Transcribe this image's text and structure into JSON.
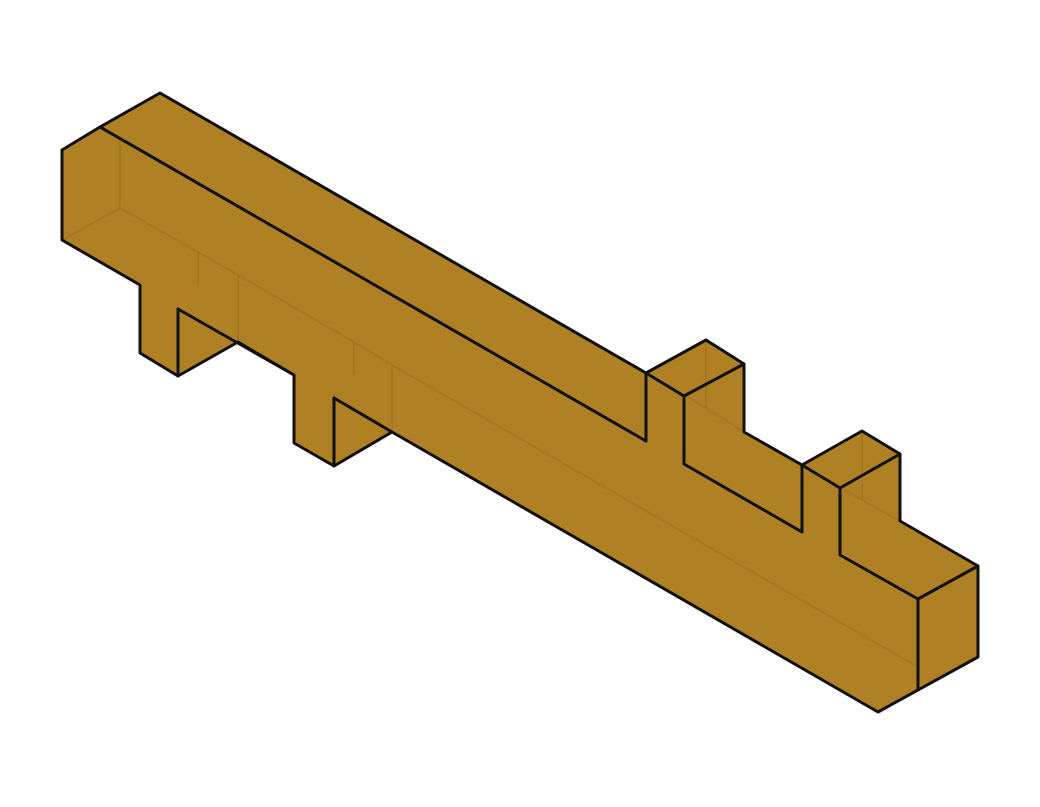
{
  "figure": {
    "kind": "isometric-3d-block",
    "object": "piece",
    "projection": "isometric",
    "colors": {
      "background": "#ffffff",
      "block_fill": "#b08025",
      "edge": "#111111",
      "hidden_edge": "#9c7020"
    },
    "features": {
      "top_prongs": 2,
      "bottom_prongs": 2,
      "transparent_faces": true
    }
  }
}
